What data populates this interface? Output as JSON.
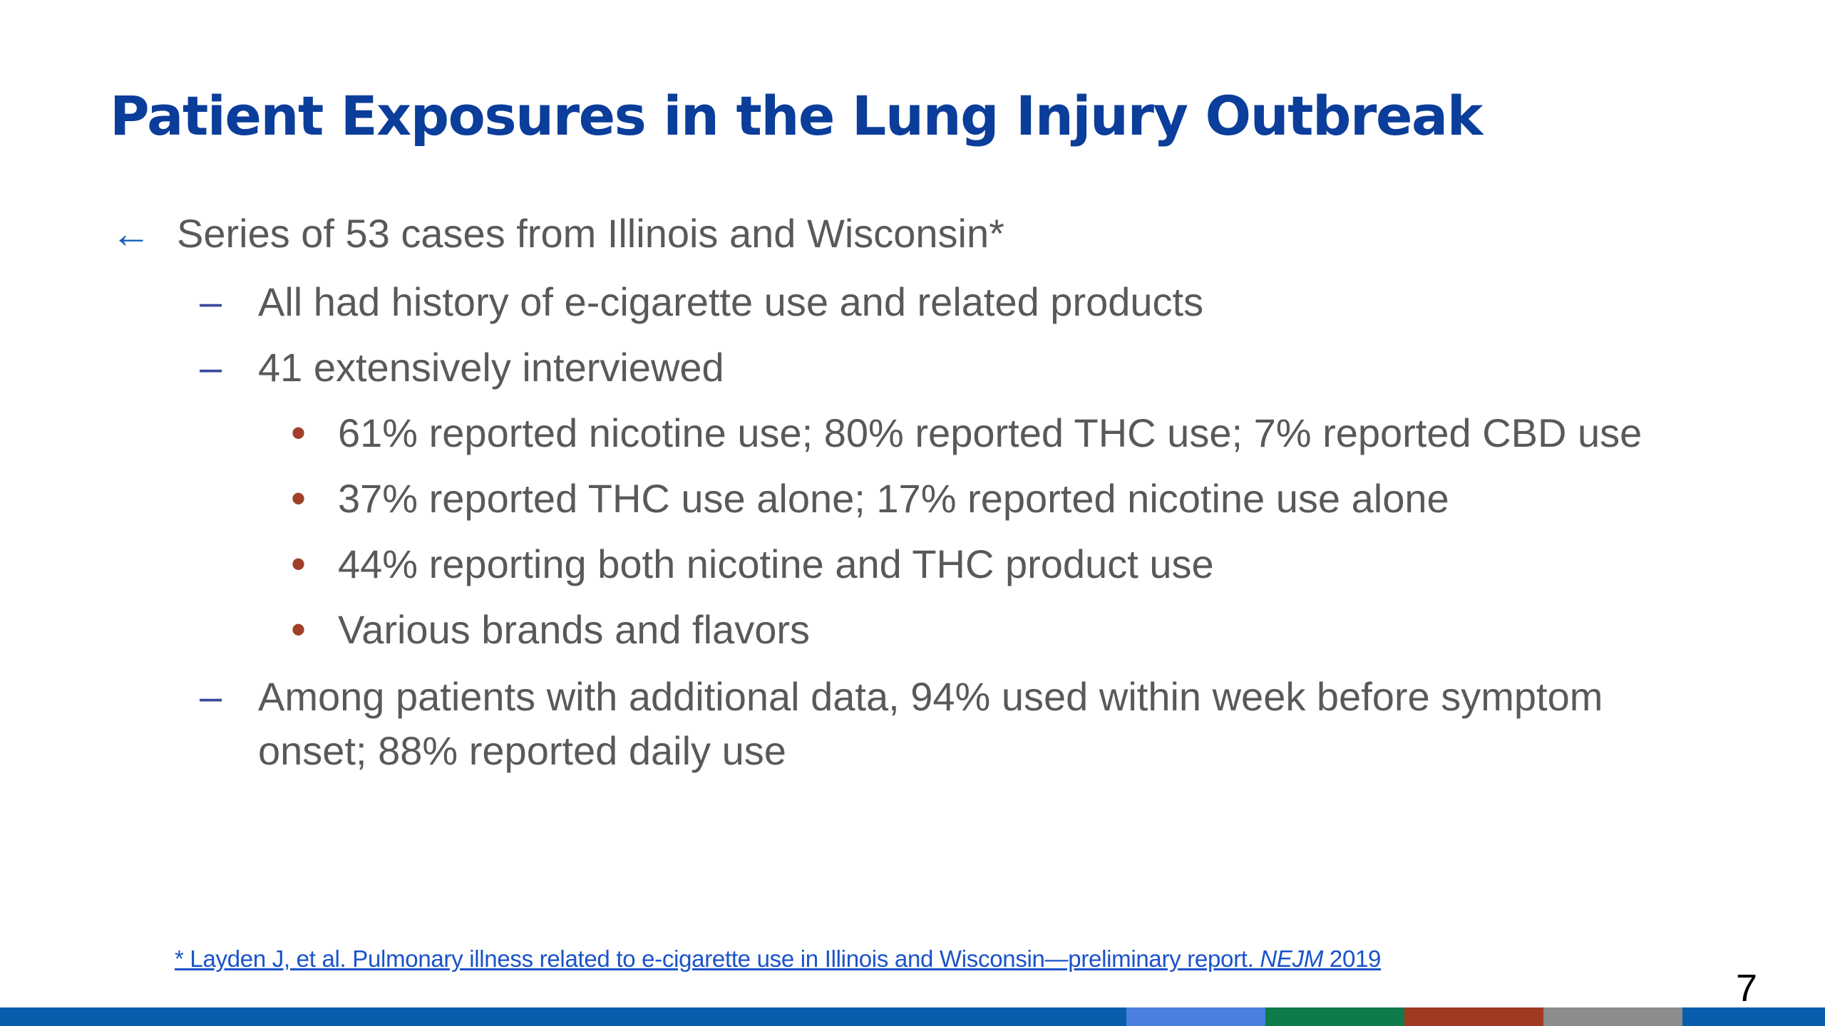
{
  "slide": {
    "title": "Patient Exposures in the Lung Injury Outbreak",
    "bullets": {
      "level1": {
        "marker": "←",
        "text": "Series of 53 cases from Illinois and Wisconsin*"
      },
      "sub1": {
        "marker": "–",
        "text": "All had history of e-cigarette use and related products"
      },
      "sub2": {
        "marker": "–",
        "text": "41 extensively interviewed"
      },
      "sub2_items": [
        {
          "marker": "•",
          "text": "61% reported nicotine use; 80% reported THC use; 7% reported CBD use"
        },
        {
          "marker": "•",
          "text": "37% reported THC use alone; 17% reported nicotine use alone"
        },
        {
          "marker": "•",
          "text": "44% reporting both nicotine and THC product use"
        },
        {
          "marker": "•",
          "text": "Various brands and flavors"
        }
      ],
      "sub3": {
        "marker": "–",
        "line1": "Among patients with additional data, 94% used within week before symptom",
        "line2": "onset; 88% reported daily use"
      }
    },
    "footnote": {
      "prefix": "* Layden J, et al. Pulmonary illness related to e-cigarette use in Illinois and Wisconsin—preliminary report. ",
      "journal": "NEJM",
      "year": " 2019"
    },
    "page_number": "7"
  },
  "colors": {
    "title": "#0b3d9a",
    "body_text": "#595959",
    "link": "#1a53c9",
    "bottom_bar": [
      "#0a5cad",
      "#4a7fe0",
      "#0f7a4a",
      "#a13a22",
      "#8c8c8c",
      "#0a5cad"
    ]
  }
}
